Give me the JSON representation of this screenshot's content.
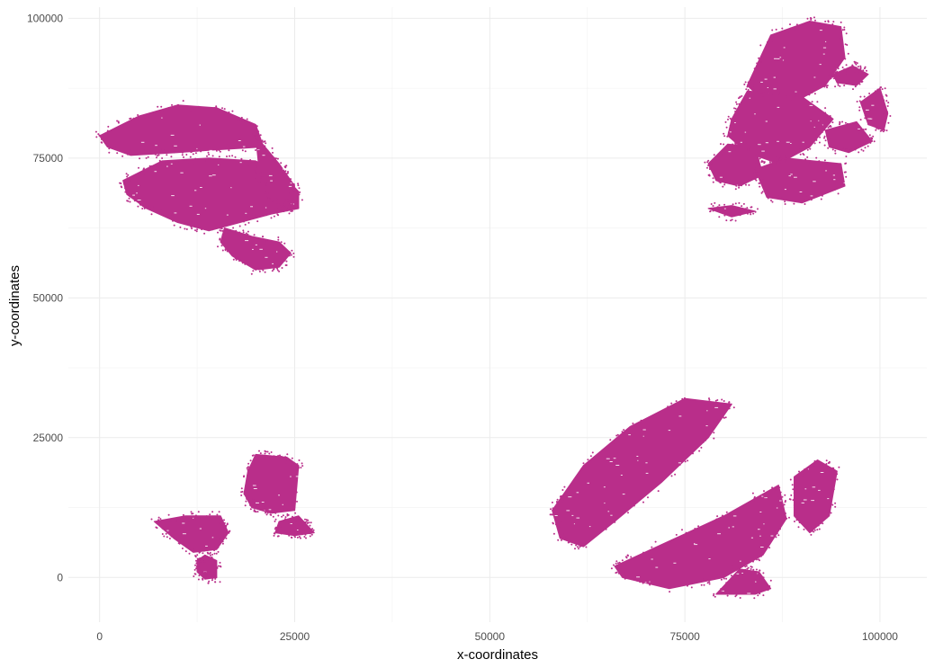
{
  "chart_data": {
    "type": "scatter",
    "xlabel": "x-coordinates",
    "ylabel": "y-coordinates",
    "xlim": [
      -4000,
      106000
    ],
    "ylim": [
      -8000,
      102000
    ],
    "x_ticks": [
      0,
      25000,
      50000,
      75000,
      100000
    ],
    "x_tick_labels": [
      "0",
      "25000",
      "50000",
      "75000",
      "100000"
    ],
    "y_ticks": [
      0,
      25000,
      50000,
      75000,
      100000
    ],
    "y_tick_labels": [
      "0",
      "25000",
      "50000",
      "75000",
      "100000"
    ],
    "grid": true,
    "point_color": "#b92e8a",
    "series": [
      {
        "regions": [
          {
            "outline": [
              [
                0,
                79000
              ],
              [
                5000,
                82500
              ],
              [
                10000,
                84500
              ],
              [
                15000,
                84000
              ],
              [
                20000,
                81000
              ],
              [
                21000,
                77000
              ],
              [
                15000,
                76500
              ],
              [
                10000,
                76000
              ],
              [
                4000,
                75500
              ],
              [
                1000,
                77000
              ]
            ]
          },
          {
            "outline": [
              [
                3000,
                71000
              ],
              [
                8000,
                74500
              ],
              [
                14000,
                75000
              ],
              [
                20000,
                74500
              ],
              [
                23500,
                72000
              ],
              [
                25500,
                69000
              ],
              [
                25500,
                66000
              ],
              [
                22000,
                65000
              ],
              [
                18000,
                63500
              ],
              [
                14000,
                62000
              ],
              [
                10000,
                63500
              ],
              [
                6000,
                66000
              ],
              [
                3500,
                68500
              ]
            ]
          },
          {
            "outline": [
              [
                20000,
                79000
              ],
              [
                23000,
                74000
              ],
              [
                25000,
                70000
              ],
              [
                24000,
                66000
              ],
              [
                21500,
                68000
              ],
              [
                20500,
                72000
              ]
            ]
          },
          {
            "outline": [
              [
                16000,
                62500
              ],
              [
                19500,
                61000
              ],
              [
                23000,
                60000
              ],
              [
                24500,
                58000
              ],
              [
                23000,
                55500
              ],
              [
                20000,
                55000
              ],
              [
                17000,
                57500
              ],
              [
                15500,
                60000
              ]
            ]
          },
          {
            "outline": [
              [
                7000,
                10000
              ],
              [
                11000,
                11000
              ],
              [
                15500,
                11000
              ],
              [
                16500,
                8000
              ],
              [
                15000,
                5000
              ],
              [
                12000,
                4500
              ],
              [
                9500,
                7000
              ]
            ]
          },
          {
            "outline": [
              [
                12500,
                3000
              ],
              [
                13500,
                4000
              ],
              [
                15000,
                3000
              ],
              [
                15000,
                0
              ],
              [
                13500,
                -300
              ],
              [
                12500,
                1000
              ]
            ]
          },
          {
            "outline": [
              [
                19000,
                19000
              ],
              [
                20000,
                22000
              ],
              [
                24000,
                21500
              ],
              [
                25500,
                20000
              ],
              [
                25000,
                12000
              ],
              [
                22000,
                11500
              ],
              [
                19500,
                12500
              ],
              [
                18500,
                15000
              ]
            ]
          },
          {
            "outline": [
              [
                23000,
                10000
              ],
              [
                25500,
                11000
              ],
              [
                27500,
                8000
              ],
              [
                25000,
                7500
              ],
              [
                22500,
                8000
              ]
            ]
          },
          {
            "outline": [
              [
                58000,
                12000
              ],
              [
                62000,
                20000
              ],
              [
                68000,
                27000
              ],
              [
                75000,
                32000
              ],
              [
                81000,
                31000
              ],
              [
                78000,
                25000
              ],
              [
                72000,
                17000
              ],
              [
                66000,
                10000
              ],
              [
                62000,
                5500
              ],
              [
                59000,
                7000
              ]
            ]
          },
          {
            "outline": [
              [
                66000,
                2000
              ],
              [
                73000,
                6500
              ],
              [
                80000,
                11000
              ],
              [
                87000,
                16500
              ],
              [
                88000,
                10500
              ],
              [
                85000,
                4000
              ],
              [
                80000,
                0
              ],
              [
                73000,
                -2000
              ],
              [
                67000,
                0
              ]
            ]
          },
          {
            "outline": [
              [
                79000,
                -3000
              ],
              [
                82000,
                1500
              ],
              [
                84500,
                1000
              ],
              [
                86000,
                -2000
              ],
              [
                84000,
                -3000
              ]
            ]
          },
          {
            "outline": [
              [
                89000,
                18000
              ],
              [
                92000,
                21000
              ],
              [
                94500,
                19000
              ],
              [
                93500,
                11000
              ],
              [
                91000,
                8000
              ],
              [
                89000,
                11000
              ]
            ]
          },
          {
            "outline": [
              [
                83000,
                88000
              ],
              [
                86000,
                97000
              ],
              [
                91000,
                99500
              ],
              [
                95000,
                98500
              ],
              [
                95500,
                93000
              ],
              [
                93000,
                88000
              ],
              [
                89000,
                85000
              ],
              [
                84500,
                86000
              ]
            ]
          },
          {
            "outline": [
              [
                81000,
                82000
              ],
              [
                83000,
                87000
              ],
              [
                90000,
                86000
              ],
              [
                94000,
                82000
              ],
              [
                91000,
                77000
              ],
              [
                87000,
                74000
              ],
              [
                83000,
                76000
              ],
              [
                80500,
                79000
              ]
            ]
          },
          {
            "outline": [
              [
                78000,
                74000
              ],
              [
                80500,
                77500
              ],
              [
                84000,
                77000
              ],
              [
                85000,
                72000
              ],
              [
                82000,
                70000
              ],
              [
                79000,
                71000
              ]
            ]
          },
          {
            "outline": [
              [
                84000,
                73000
              ],
              [
                88000,
                75000
              ],
              [
                95000,
                74000
              ],
              [
                95500,
                70000
              ],
              [
                90000,
                67000
              ],
              [
                85500,
                68000
              ]
            ]
          },
          {
            "outline": [
              [
                93000,
                80000
              ],
              [
                97000,
                81500
              ],
              [
                99000,
                78000
              ],
              [
                96000,
                76000
              ],
              [
                93500,
                77000
              ]
            ]
          },
          {
            "outline": [
              [
                97500,
                85000
              ],
              [
                100000,
                87500
              ],
              [
                101000,
                83000
              ],
              [
                100500,
                80000
              ],
              [
                98500,
                81000
              ]
            ]
          },
          {
            "outline": [
              [
                94000,
                90000
              ],
              [
                96500,
                91500
              ],
              [
                98500,
                90000
              ],
              [
                97000,
                88000
              ],
              [
                94500,
                88500
              ]
            ]
          },
          {
            "outline": [
              [
                78000,
                66000
              ],
              [
                81000,
                66500
              ],
              [
                84000,
                65500
              ],
              [
                81000,
                64500
              ]
            ]
          }
        ]
      }
    ]
  }
}
